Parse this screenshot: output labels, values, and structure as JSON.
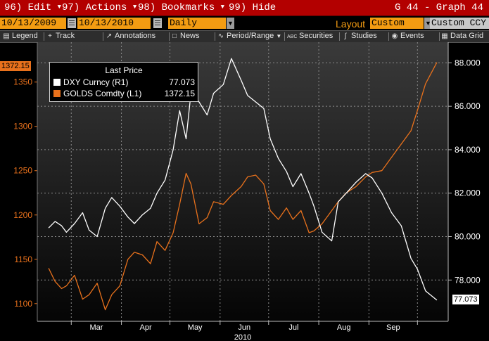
{
  "menu": {
    "edit": "96) Edit",
    "actions": "97) Actions",
    "bookmarks": "98) Bookmarks",
    "hide": "99) Hide",
    "title": "G 44 - Graph 44"
  },
  "controls": {
    "start_date": "10/13/2009",
    "end_date": "10/13/2010",
    "period": "Daily",
    "layout_label": "Layout",
    "layout_value": "Custom",
    "currency": "Custom CCY"
  },
  "toolbar": {
    "legend": "Legend",
    "track": "Track",
    "annotations": "Annotations",
    "news": "News",
    "period_range": "Period/Range",
    "securities": "Securities",
    "studies": "Studies",
    "events": "Events",
    "data_grid": "Data Grid"
  },
  "legend": {
    "title": "Last Price",
    "dxy_label": "DXY Curncy  (R1)",
    "dxy_value": "77.073",
    "gold_label": "GOLDS Comdty  (L1)",
    "gold_value": "1372.15"
  },
  "colors": {
    "dxy": "#ffffff",
    "gold": "#e8711c",
    "menubar": "#b30000",
    "field": "#f39c12"
  },
  "chart_data": {
    "type": "line",
    "xlabel": "2010",
    "x_ticks": [
      "Mar",
      "Apr",
      "May",
      "Jun",
      "Jul",
      "Aug",
      "Sep"
    ],
    "left_axis": {
      "ticks": [
        "1100",
        "1150",
        "1200",
        "1250",
        "1300",
        "1350"
      ],
      "range": [
        1080,
        1395
      ]
    },
    "right_axis": {
      "ticks": [
        "78.000",
        "80.000",
        "82.000",
        "84.000",
        "86.000",
        "88.000"
      ],
      "range": [
        76.1,
        88.95
      ]
    },
    "last_value_tags": {
      "gold": "1372.15",
      "dxy": "77.073"
    },
    "series": [
      {
        "name": "GOLDS Comdty (L1)",
        "axis": "left",
        "dates": [
          "2010-02-15",
          "2010-02-19",
          "2010-02-23",
          "2010-02-26",
          "2010-03-03",
          "2010-03-08",
          "2010-03-12",
          "2010-03-17",
          "2010-03-22",
          "2010-03-26",
          "2010-03-31",
          "2010-04-05",
          "2010-04-09",
          "2010-04-14",
          "2010-04-19",
          "2010-04-23",
          "2010-04-28",
          "2010-05-03",
          "2010-05-07",
          "2010-05-11",
          "2010-05-14",
          "2010-05-19",
          "2010-05-24",
          "2010-05-28",
          "2010-06-03",
          "2010-06-08",
          "2010-06-14",
          "2010-06-18",
          "2010-06-23",
          "2010-06-28",
          "2010-07-02",
          "2010-07-07",
          "2010-07-12",
          "2010-07-16",
          "2010-07-21",
          "2010-07-26",
          "2010-07-29",
          "2010-08-03",
          "2010-08-09",
          "2010-08-13",
          "2010-08-18",
          "2010-08-24",
          "2010-08-30",
          "2010-09-03",
          "2010-09-09",
          "2010-09-15",
          "2010-09-21",
          "2010-09-27",
          "2010-10-01",
          "2010-10-06",
          "2010-10-13"
        ],
        "values": [
          1140,
          1125,
          1117,
          1120,
          1132,
          1105,
          1110,
          1123,
          1093,
          1110,
          1120,
          1150,
          1158,
          1155,
          1145,
          1170,
          1160,
          1180,
          1212,
          1247,
          1235,
          1190,
          1197,
          1215,
          1212,
          1222,
          1232,
          1243,
          1245,
          1235,
          1205,
          1195,
          1208,
          1195,
          1205,
          1180,
          1182,
          1190,
          1205,
          1215,
          1225,
          1232,
          1243,
          1248,
          1250,
          1265,
          1280,
          1295,
          1318,
          1348,
          1372.15
        ]
      },
      {
        "name": "DXY Curncy (R1)",
        "axis": "right",
        "dates": [
          "2010-02-15",
          "2010-02-19",
          "2010-02-23",
          "2010-02-26",
          "2010-03-03",
          "2010-03-08",
          "2010-03-12",
          "2010-03-17",
          "2010-03-22",
          "2010-03-26",
          "2010-03-31",
          "2010-04-05",
          "2010-04-09",
          "2010-04-14",
          "2010-04-19",
          "2010-04-23",
          "2010-04-28",
          "2010-05-03",
          "2010-05-07",
          "2010-05-11",
          "2010-05-14",
          "2010-05-19",
          "2010-05-24",
          "2010-05-28",
          "2010-06-03",
          "2010-06-08",
          "2010-06-14",
          "2010-06-18",
          "2010-06-23",
          "2010-06-28",
          "2010-07-02",
          "2010-07-07",
          "2010-07-12",
          "2010-07-16",
          "2010-07-21",
          "2010-07-26",
          "2010-07-29",
          "2010-08-03",
          "2010-08-09",
          "2010-08-13",
          "2010-08-18",
          "2010-08-24",
          "2010-08-30",
          "2010-09-03",
          "2010-09-09",
          "2010-09-15",
          "2010-09-21",
          "2010-09-27",
          "2010-10-01",
          "2010-10-06",
          "2010-10-13"
        ],
        "values": [
          80.4,
          80.7,
          80.5,
          80.2,
          80.6,
          81.1,
          80.3,
          80.0,
          81.3,
          81.8,
          81.4,
          80.9,
          80.6,
          81.0,
          81.3,
          82.0,
          82.6,
          84.0,
          85.8,
          84.5,
          86.6,
          86.2,
          85.6,
          86.6,
          87.0,
          88.2,
          87.2,
          86.5,
          86.2,
          85.9,
          84.5,
          83.6,
          83.0,
          82.3,
          82.9,
          82.0,
          81.4,
          80.2,
          79.8,
          81.6,
          82.0,
          82.5,
          82.9,
          82.7,
          82.0,
          81.1,
          80.5,
          79.0,
          78.5,
          77.5,
          77.073
        ]
      }
    ]
  }
}
